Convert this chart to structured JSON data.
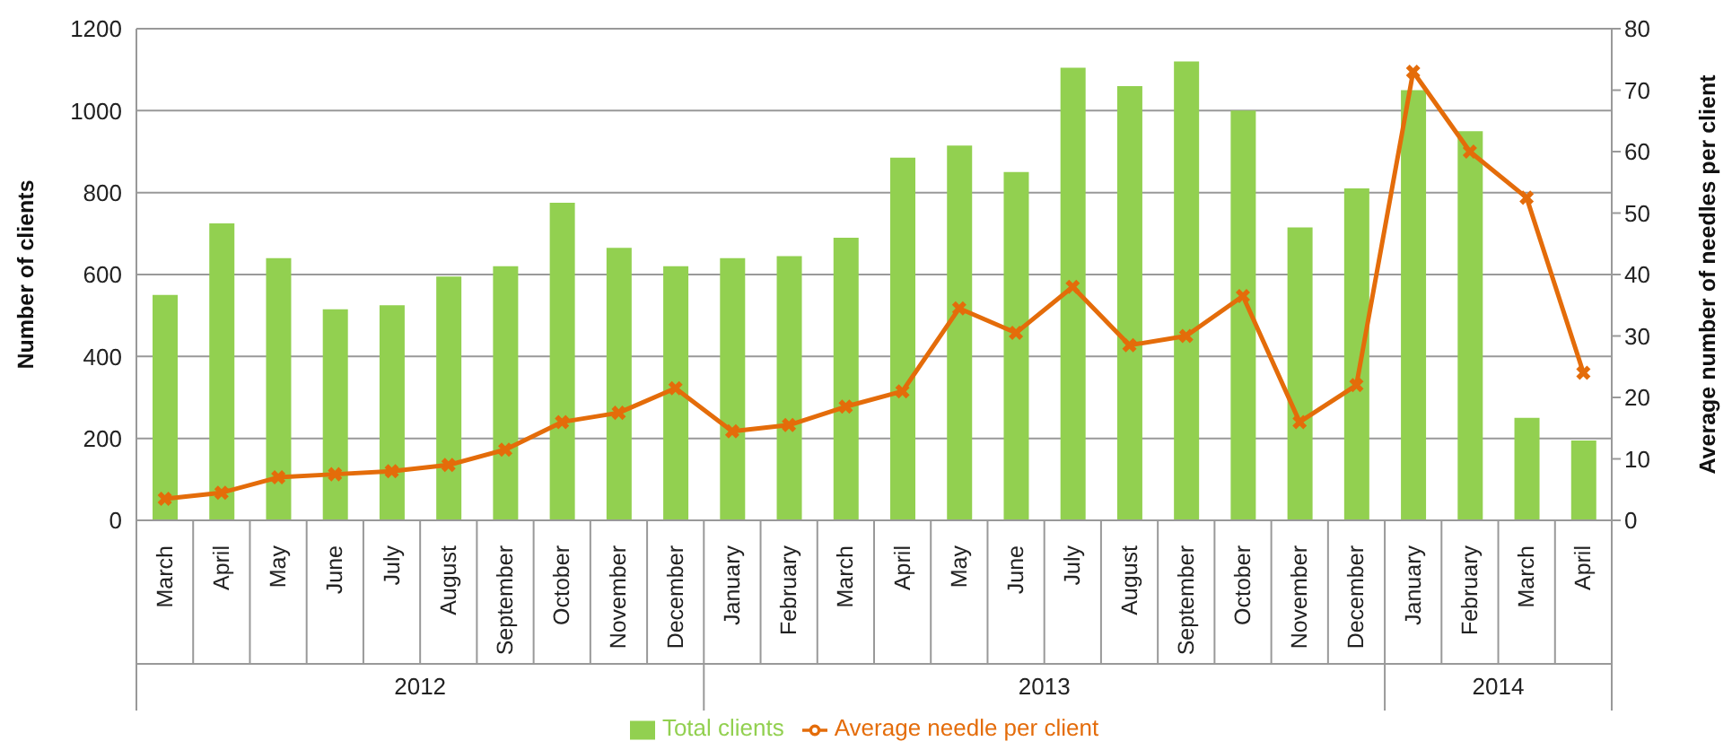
{
  "chart_data": {
    "type": "bar",
    "xlabel": null,
    "ylabel": "Number of clients",
    "y2label": "Average number of needles per client",
    "categories": [
      "March",
      "April",
      "May",
      "June",
      "July",
      "August",
      "September",
      "October",
      "November",
      "December",
      "January",
      "February",
      "March",
      "April",
      "May",
      "June",
      "July",
      "August",
      "September",
      "October",
      "November",
      "December",
      "January",
      "February",
      "March",
      "April"
    ],
    "annotations": [
      "2012",
      "2013",
      "2014"
    ],
    "series": [
      {
        "name": "Total clients",
        "color": "#92d050",
        "values": [
          550,
          725,
          640,
          515,
          525,
          595,
          620,
          775,
          665,
          620,
          640,
          645,
          690,
          885,
          915,
          850,
          1105,
          1060,
          1120,
          1000,
          715,
          810,
          1050,
          950,
          250,
          195
        ]
      },
      {
        "name": "Average needle per client",
        "type": "line",
        "axis": "y2",
        "color": "#e46c0a",
        "values": [
          3.5,
          4.5,
          7,
          7.5,
          8,
          9,
          11.5,
          16,
          17.5,
          21.5,
          14.5,
          15.5,
          18.5,
          21,
          34.5,
          30.5,
          38,
          28.5,
          30,
          36.5,
          16,
          22,
          73,
          60,
          52.5,
          24
        ]
      }
    ],
    "ylim": [
      0,
      1200
    ],
    "yticks": [
      0,
      200,
      400,
      600,
      800,
      1000,
      1200
    ],
    "y2lim": [
      0,
      80
    ],
    "y2ticks": [
      0,
      10,
      20,
      30,
      40,
      50,
      60,
      70,
      80
    ],
    "grid": "y",
    "legend": "bottom",
    "marker": "cross",
    "line_style": "solid"
  }
}
